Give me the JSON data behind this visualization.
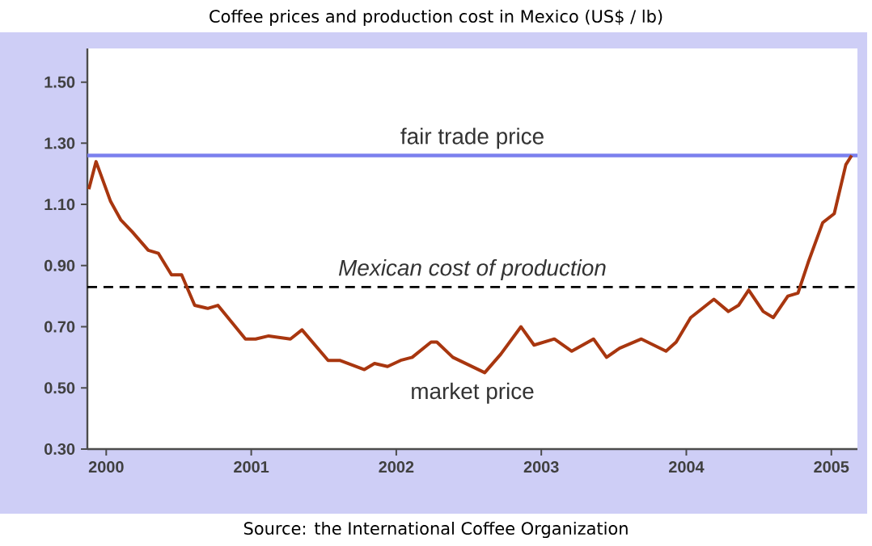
{
  "chart_data": {
    "type": "line",
    "title": "Coffee prices and production cost in Mexico (US$ / lb)",
    "annotations": [
      "Source: the International Coffee Organization"
    ],
    "x": [
      1999.88,
      1999.93,
      2000.03,
      2000.1,
      2000.18,
      2000.29,
      2000.36,
      2000.45,
      2000.52,
      2000.61,
      2000.7,
      2000.77,
      2000.96,
      2001.03,
      2001.12,
      2001.27,
      2001.35,
      2001.53,
      2001.61,
      2001.78,
      2001.85,
      2001.94,
      2002.03,
      2002.11,
      2002.24,
      2002.28,
      2002.39,
      2002.61,
      2002.72,
      2002.86,
      2002.95,
      2003.09,
      2003.21,
      2003.36,
      2003.45,
      2003.54,
      2003.69,
      2003.86,
      2003.93,
      2004.03,
      2004.19,
      2004.29,
      2004.36,
      2004.43,
      2004.53,
      2004.6,
      2004.7,
      2004.77,
      2004.84,
      2004.94,
      2005.02,
      2005.1,
      2005.14
    ],
    "series": [
      {
        "name": "market price",
        "color": "#a8360f",
        "values": [
          1.15,
          1.24,
          1.11,
          1.05,
          1.01,
          0.95,
          0.94,
          0.87,
          0.87,
          0.77,
          0.76,
          0.77,
          0.66,
          0.66,
          0.67,
          0.66,
          0.69,
          0.59,
          0.59,
          0.56,
          0.58,
          0.57,
          0.59,
          0.6,
          0.65,
          0.65,
          0.6,
          0.55,
          0.61,
          0.7,
          0.64,
          0.66,
          0.62,
          0.66,
          0.6,
          0.63,
          0.66,
          0.62,
          0.65,
          0.73,
          0.79,
          0.75,
          0.77,
          0.82,
          0.75,
          0.73,
          0.8,
          0.81,
          0.91,
          1.04,
          1.07,
          1.23,
          1.26
        ]
      }
    ],
    "xlim": [
      1999.87,
      2005.18
    ],
    "ylim": [
      0.3,
      1.61
    ],
    "xticks": [
      2000,
      2001,
      2002,
      2003,
      2004,
      2005
    ],
    "yticks": [
      {
        "value": 0.3,
        "label": "0.30"
      },
      {
        "value": 0.5,
        "label": "0.50"
      },
      {
        "value": 0.7,
        "label": "0.70"
      },
      {
        "value": 0.9,
        "label": "0.90"
      },
      {
        "value": 1.1,
        "label": "1.10"
      },
      {
        "value": 1.3,
        "label": "1.30"
      },
      {
        "value": 1.5,
        "label": "1.50"
      }
    ],
    "ref_lines": [
      {
        "axis": "y",
        "value": 1.26,
        "label": "fair trade price",
        "color": "#7b80ee",
        "line_style": "solid"
      },
      {
        "axis": "y",
        "value": 0.83,
        "label": "Mexican cost of production",
        "color": "#000000",
        "line_style": "dashed"
      }
    ],
    "line_style": "solid"
  }
}
